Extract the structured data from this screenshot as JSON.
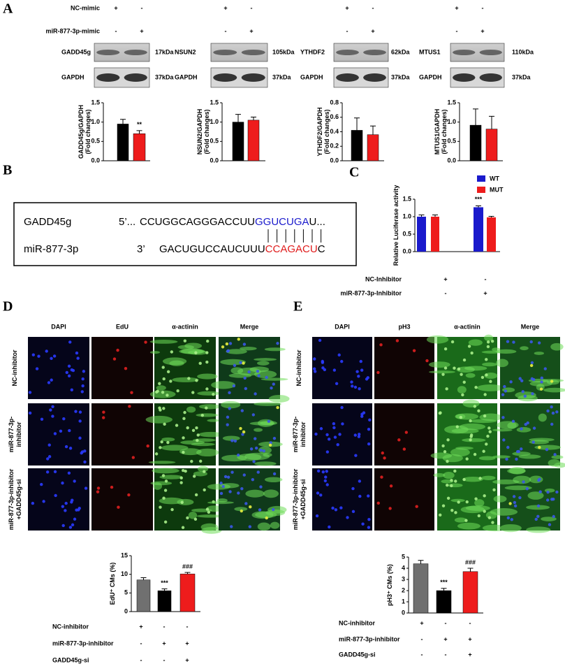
{
  "panel_labels": [
    "A",
    "B",
    "C",
    "D",
    "E"
  ],
  "panel_a": {
    "conditions": [
      {
        "label": "NC-mimic",
        "signs": [
          "+",
          "-"
        ]
      },
      {
        "label": "miR-877-3p-mimic",
        "signs": [
          "-",
          "+"
        ]
      }
    ],
    "blots": [
      {
        "target": "GADD45g",
        "target_kda": "17kDa",
        "control": "GAPDH",
        "control_kda": "37kDa"
      },
      {
        "target": "NSUN2",
        "target_kda": "105kDa",
        "control": "GAPDH",
        "control_kda": "37kDa"
      },
      {
        "target": "YTHDF2",
        "target_kda": "62kDa",
        "control": "GAPDH",
        "control_kda": "37kDa"
      },
      {
        "target": "MTUS1",
        "target_kda": "110kDa",
        "control": "GAPDH",
        "control_kda": "37kDa"
      }
    ]
  },
  "panel_b": {
    "rows": [
      {
        "name": "GADD45g",
        "prime": "5’...",
        "segments": [
          "CCUGGCAGGGACCUU",
          "GGUCUGA",
          "U..."
        ]
      },
      {
        "name": "miR-877-3p",
        "prime": "3’",
        "segments": [
          "GACUGUCCAUCUUU",
          "CCAGACU",
          "C"
        ]
      }
    ]
  },
  "panel_c": {
    "conditions": [
      {
        "label": "NC-Inhibitor",
        "signs": [
          "+",
          "-"
        ]
      },
      {
        "label": "miR-877-3p-Inhibitor",
        "signs": [
          "-",
          "+"
        ]
      }
    ]
  },
  "panel_d": {
    "columns": [
      "DAPI",
      "EdU",
      "α-actinin",
      "Merge"
    ],
    "rows": [
      [
        "NC-inhibitor"
      ],
      [
        "miR-877-3p-",
        "inhibitor"
      ],
      [
        "miR-877-3p-inhibitor",
        "+GADD45g-si"
      ]
    ],
    "conditions": [
      {
        "label": "NC-inhibitor",
        "signs": [
          "+",
          "-",
          "-"
        ]
      },
      {
        "label": "miR-877-3p-inhibitor",
        "signs": [
          "-",
          "+",
          "+"
        ]
      },
      {
        "label": "GADD45g-si",
        "signs": [
          "-",
          "-",
          "+"
        ]
      }
    ]
  },
  "panel_e": {
    "columns": [
      "DAPI",
      "pH3",
      "α-actinin",
      "Merge"
    ],
    "rows": [
      [
        "NC-inhibitor"
      ],
      [
        "miR-877-3p-",
        "inhibitor"
      ],
      [
        "miR-877-3p-inhibitor",
        "+GADD45g-si"
      ]
    ],
    "conditions": [
      {
        "label": "NC-inhibitor",
        "signs": [
          "+",
          "-",
          "-"
        ]
      },
      {
        "label": "miR-877-3p-inhibitor",
        "signs": [
          "-",
          "+",
          "+"
        ]
      },
      {
        "label": "GADD45g-si",
        "signs": [
          "-",
          "-",
          "+"
        ]
      }
    ]
  },
  "chart_data": [
    {
      "type": "bar",
      "ylabel": [
        "GADD45g/GAPDH",
        "(Fold changes)"
      ],
      "values": [
        0.95,
        0.7
      ],
      "errors": [
        0.12,
        0.08
      ],
      "colors": [
        "#000000",
        "#ee1c1c"
      ],
      "ylim": [
        0,
        1.5
      ],
      "yticks": [
        {
          "value": 0,
          "label": "0.0"
        },
        0.5,
        {
          "value": 1,
          "label": "1.0"
        },
        1.5
      ],
      "annotations": [
        {
          "bar": 1,
          "text": "**"
        }
      ]
    },
    {
      "type": "bar",
      "ylabel": [
        "NSUN2/GAPDH",
        "(Fold changes)"
      ],
      "values": [
        1.0,
        1.05
      ],
      "errors": [
        0.2,
        0.08
      ],
      "colors": [
        "#000000",
        "#ee1c1c"
      ],
      "ylim": [
        0,
        1.5
      ],
      "yticks": [
        {
          "value": 0,
          "label": "0.0"
        },
        0.5,
        {
          "value": 1,
          "label": "1.0"
        },
        1.5
      ]
    },
    {
      "type": "bar",
      "ylabel": [
        "YTHDF2/GAPDH",
        "(Fold changes)"
      ],
      "values": [
        0.42,
        0.36
      ],
      "errors": [
        0.17,
        0.12
      ],
      "colors": [
        "#000000",
        "#ee1c1c"
      ],
      "ylim": [
        0,
        0.8
      ],
      "yticks": [
        {
          "value": 0,
          "label": "0.0"
        },
        0.2,
        0.4,
        0.6,
        0.8
      ]
    },
    {
      "type": "bar",
      "ylabel": [
        "MTUS1/GAPDH",
        "(Fold changes)"
      ],
      "values": [
        0.92,
        0.82
      ],
      "errors": [
        0.42,
        0.33
      ],
      "colors": [
        "#000000",
        "#ee1c1c"
      ],
      "ylim": [
        0,
        1.5
      ],
      "yticks": [
        {
          "value": 0,
          "label": "0.0"
        },
        0.5,
        {
          "value": 1,
          "label": "1.0"
        },
        1.5
      ]
    },
    {
      "type": "grouped_bar",
      "ylabel": [
        "Relative Luciferase activity"
      ],
      "series": [
        {
          "name": "WT",
          "color": "#1a1acc",
          "values": [
            1.0,
            1.27
          ],
          "errors": [
            0.05,
            0.04
          ]
        },
        {
          "name": "MUT",
          "color": "#ee1c1c",
          "values": [
            1.0,
            0.98
          ],
          "errors": [
            0.05,
            0.03
          ]
        }
      ],
      "ylim": [
        0,
        1.5
      ],
      "yticks": [
        {
          "value": 0,
          "label": "0.0"
        },
        0.5,
        {
          "value": 1,
          "label": "1.0"
        },
        1.5
      ],
      "annotations": [
        {
          "group": 1,
          "text": "***"
        }
      ]
    },
    {
      "type": "bar",
      "ylabel": [
        "EdU⁺ CMs (%)"
      ],
      "values": [
        8.5,
        5.6,
        10.1
      ],
      "errors": [
        0.6,
        0.5,
        0.4
      ],
      "colors": [
        "#707070",
        "#000000",
        "#ee1c1c"
      ],
      "ylim": [
        0,
        15
      ],
      "yticks": [
        0,
        5,
        10,
        15
      ],
      "annotations": [
        {
          "bar": 1,
          "text": "***"
        },
        {
          "bar": 2,
          "text": "###"
        }
      ]
    },
    {
      "type": "bar",
      "ylabel": [
        "pH3⁺ CMs (%)"
      ],
      "values": [
        4.4,
        2.0,
        3.7
      ],
      "errors": [
        0.3,
        0.2,
        0.3
      ],
      "colors": [
        "#707070",
        "#000000",
        "#ee1c1c"
      ],
      "ylim": [
        0,
        5
      ],
      "yticks": [
        0,
        1,
        2,
        3,
        4,
        5
      ],
      "annotations": [
        {
          "bar": 1,
          "text": "***"
        },
        {
          "bar": 2,
          "text": "###"
        }
      ]
    }
  ]
}
